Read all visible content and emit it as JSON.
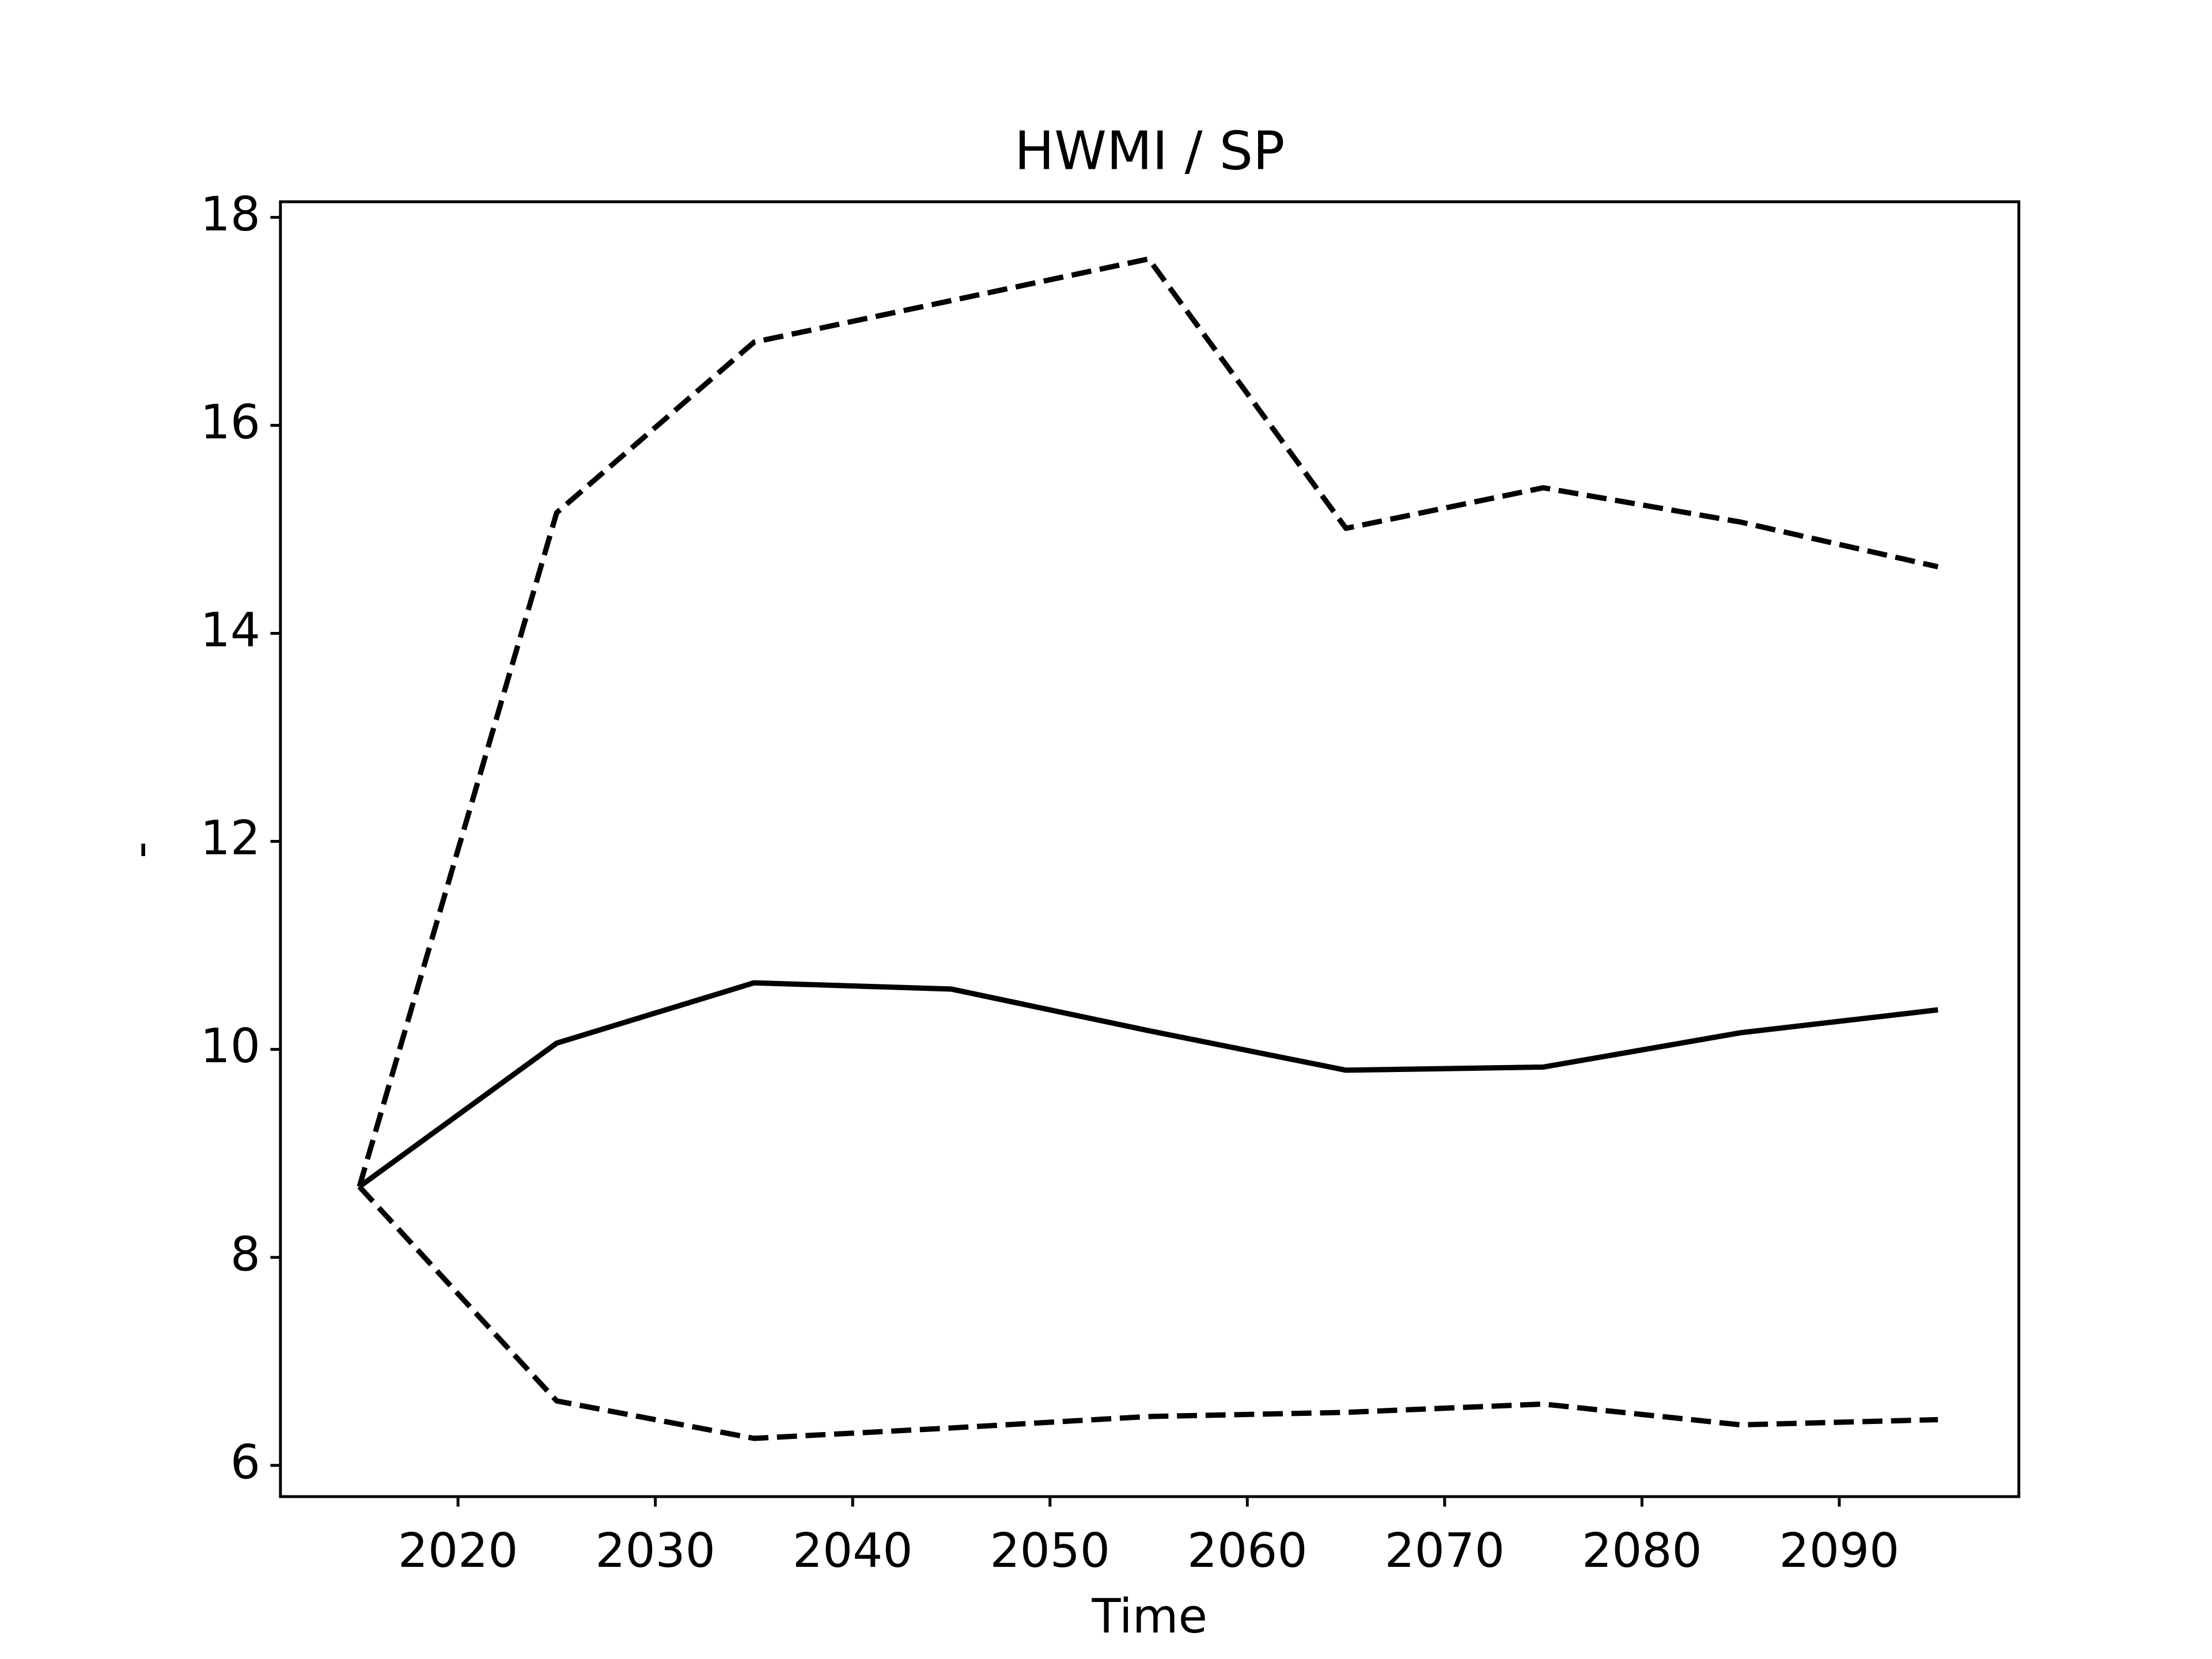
{
  "chart_data": {
    "type": "line",
    "title": "HWMI / SP",
    "xlabel": "Time",
    "ylabel": "-",
    "x": [
      2015,
      2025,
      2035,
      2045,
      2055,
      2065,
      2075,
      2085,
      2095
    ],
    "series": [
      {
        "color": "#000000",
        "linestyle": "solid",
        "values": [
          8.68,
          10.06,
          10.64,
          10.58,
          10.18,
          9.8,
          9.83,
          10.16,
          10.38
        ]
      },
      {
        "color": "#000000",
        "linestyle": "dashed",
        "values": [
          8.68,
          15.16,
          16.8,
          17.2,
          17.6,
          15.01,
          15.4,
          15.07,
          14.64
        ]
      },
      {
        "color": "#000000",
        "linestyle": "dashed",
        "values": [
          8.68,
          6.62,
          6.26,
          6.36,
          6.47,
          6.51,
          6.59,
          6.39,
          6.44
        ]
      }
    ],
    "xlim": [
      2011.0,
      2099.1
    ],
    "ylim": [
      5.7,
      18.15
    ],
    "xticks": [
      2020,
      2030,
      2040,
      2050,
      2060,
      2070,
      2080,
      2090
    ],
    "yticks": [
      6,
      8,
      10,
      12,
      14,
      16,
      18
    ],
    "grid": false
  }
}
